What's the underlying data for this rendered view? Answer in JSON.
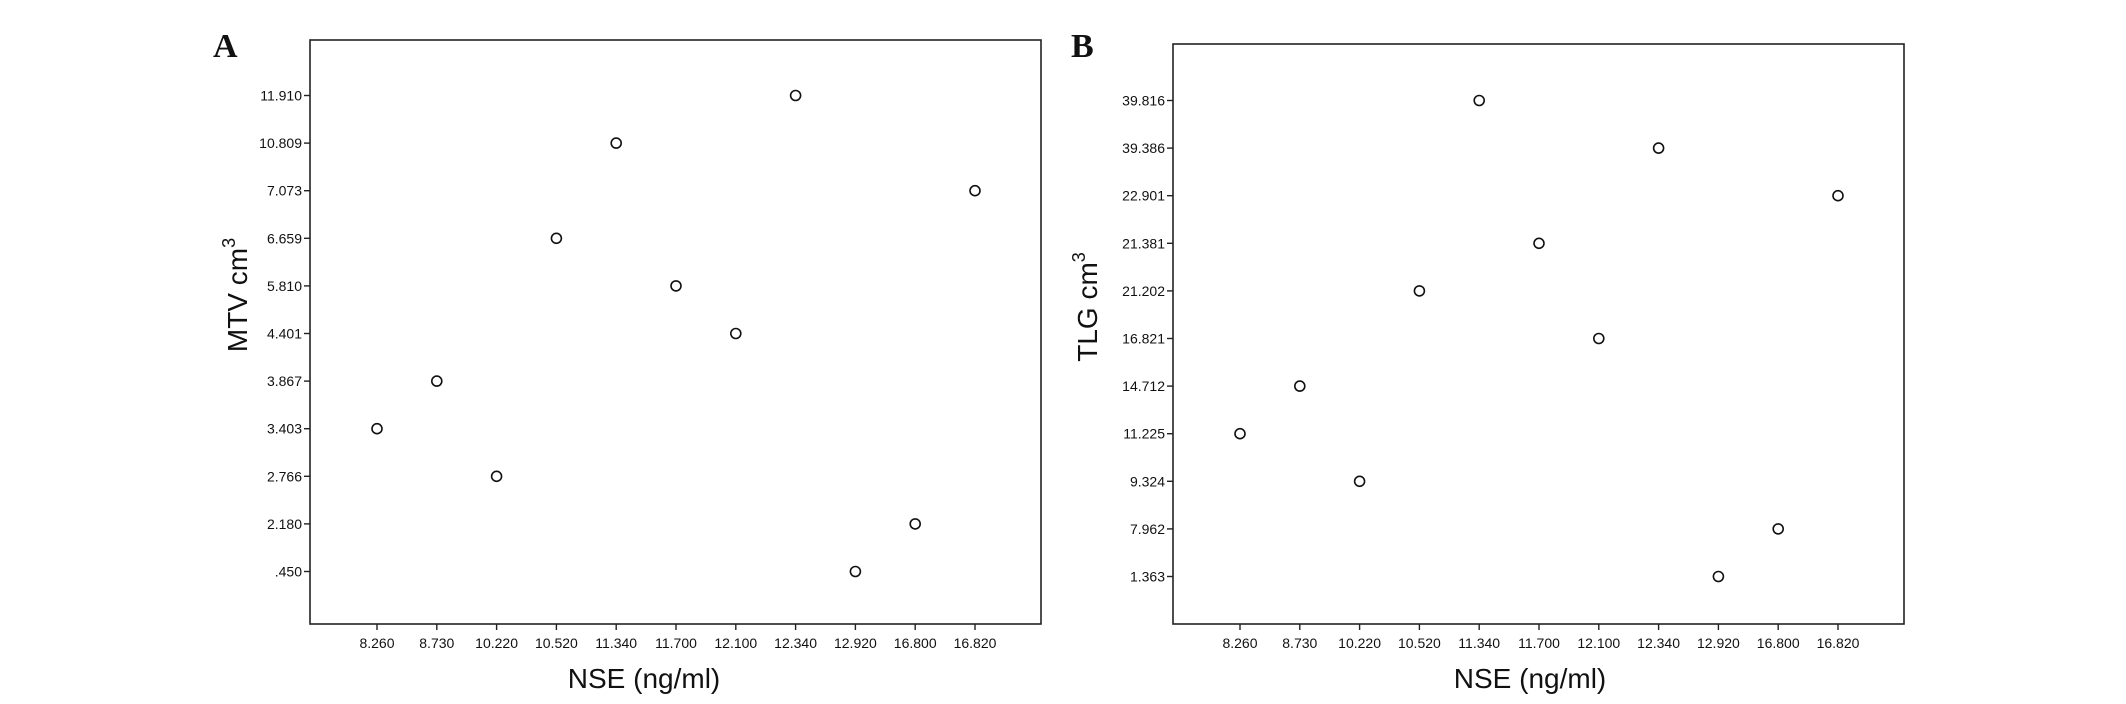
{
  "chart_data": [
    {
      "type": "scatter",
      "panel": "A",
      "xlabel": "NSE (ng/ml)",
      "ylabel": "MTV cm",
      "ylabel_sup": "3",
      "x_categories": [
        "8.260",
        "8.730",
        "10.220",
        "10.520",
        "11.340",
        "11.700",
        "12.100",
        "12.340",
        "12.920",
        "16.800",
        "16.820"
      ],
      "y_categories": [
        ".450",
        "2.180",
        "2.766",
        "3.403",
        "3.867",
        "4.401",
        "5.810",
        "6.659",
        "7.073",
        "10.809",
        "11.910"
      ],
      "points": [
        {
          "x": "8.260",
          "y": "3.403"
        },
        {
          "x": "8.730",
          "y": "3.867"
        },
        {
          "x": "10.220",
          "y": "2.766"
        },
        {
          "x": "10.520",
          "y": "6.659"
        },
        {
          "x": "11.340",
          "y": "10.809"
        },
        {
          "x": "11.700",
          "y": "5.810"
        },
        {
          "x": "12.100",
          "y": "4.401"
        },
        {
          "x": "12.340",
          "y": "11.910"
        },
        {
          "x": "12.920",
          "y": ".450"
        },
        {
          "x": "16.800",
          "y": "2.180"
        },
        {
          "x": "16.820",
          "y": "7.073"
        }
      ],
      "grid": false,
      "legend": "none"
    },
    {
      "type": "scatter",
      "panel": "B",
      "xlabel": "NSE (ng/ml)",
      "ylabel": "TLG cm",
      "ylabel_sup": "3",
      "x_categories": [
        "8.260",
        "8.730",
        "10.220",
        "10.520",
        "11.340",
        "11.700",
        "12.100",
        "12.340",
        "12.920",
        "16.800",
        "16.820"
      ],
      "y_categories": [
        "1.363",
        "7.962",
        "9.324",
        "11.225",
        "14.712",
        "16.821",
        "21.202",
        "21.381",
        "22.901",
        "39.386",
        "39.816"
      ],
      "points": [
        {
          "x": "8.260",
          "y": "11.225"
        },
        {
          "x": "8.730",
          "y": "14.712"
        },
        {
          "x": "10.220",
          "y": "9.324"
        },
        {
          "x": "10.520",
          "y": "21.202"
        },
        {
          "x": "11.340",
          "y": "39.816"
        },
        {
          "x": "11.700",
          "y": "21.381"
        },
        {
          "x": "12.100",
          "y": "16.821"
        },
        {
          "x": "12.340",
          "y": "39.386"
        },
        {
          "x": "12.920",
          "y": "1.363"
        },
        {
          "x": "16.800",
          "y": "7.962"
        },
        {
          "x": "16.820",
          "y": "22.901"
        }
      ],
      "grid": false,
      "legend": "none"
    }
  ]
}
